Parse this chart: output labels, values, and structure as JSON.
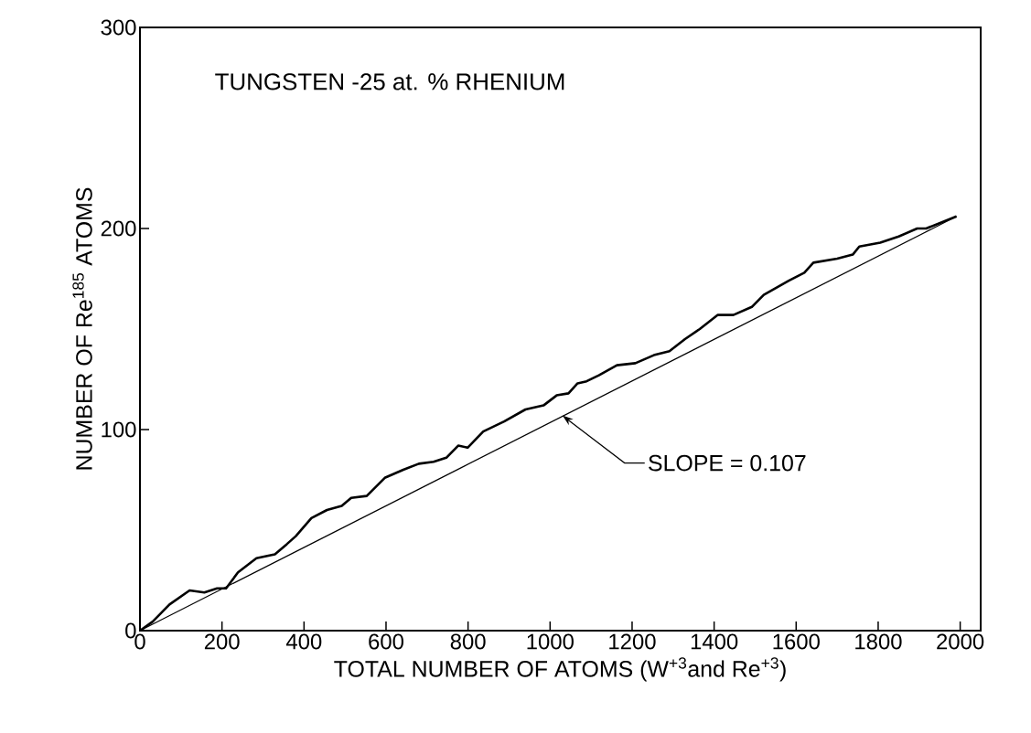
{
  "chart_data": {
    "type": "line",
    "title": "TUNGSTEN -25 at. % RHENIUM",
    "xlabel": "TOTAL NUMBER OF ATOMS (W$^{+3}$and Re$^{+3}$)",
    "ylabel": "NUMBER OF Re$^{185}$ ATOMS",
    "xlim": [
      0,
      2050
    ],
    "ylim": [
      0,
      300
    ],
    "xticks": [
      0,
      200,
      400,
      600,
      800,
      1000,
      1200,
      1400,
      1600,
      1800,
      2000
    ],
    "yticks": [
      0,
      100,
      200,
      300
    ],
    "annotations": [
      {
        "text": "SLOPE = 0.107",
        "x": 1030,
        "y": 107
      }
    ],
    "series": [
      {
        "color": "#000000",
        "x": [
          0,
          31,
          72,
          121,
          157,
          188,
          210,
          239,
          284,
          329,
          358,
          380,
          418,
          456,
          492,
          515,
          553,
          597,
          642,
          680,
          716,
          747,
          776,
          799,
          837,
          888,
          940,
          984,
          1016,
          1045,
          1067,
          1089,
          1119,
          1163,
          1208,
          1253,
          1291,
          1329,
          1365,
          1409,
          1447,
          1492,
          1521,
          1582,
          1620,
          1642,
          1700,
          1738,
          1754,
          1805,
          1850,
          1895,
          1917,
          1991
        ],
        "values": [
          0,
          4.5,
          13,
          20,
          19,
          21,
          21,
          29,
          36,
          38,
          43,
          47,
          56,
          60,
          62,
          66,
          67,
          76,
          80,
          83,
          84,
          86,
          92,
          91,
          99,
          104,
          110,
          112,
          117,
          118,
          123,
          124,
          127,
          132,
          133,
          137,
          139,
          145,
          150,
          157,
          157,
          161,
          167,
          174,
          178,
          183,
          185,
          187,
          191,
          193,
          196,
          200,
          200,
          206
        ]
      },
      {
        "type": "line",
        "color": "#000000",
        "x": [
          0,
          1991
        ],
        "values": [
          0,
          206
        ]
      }
    ]
  }
}
